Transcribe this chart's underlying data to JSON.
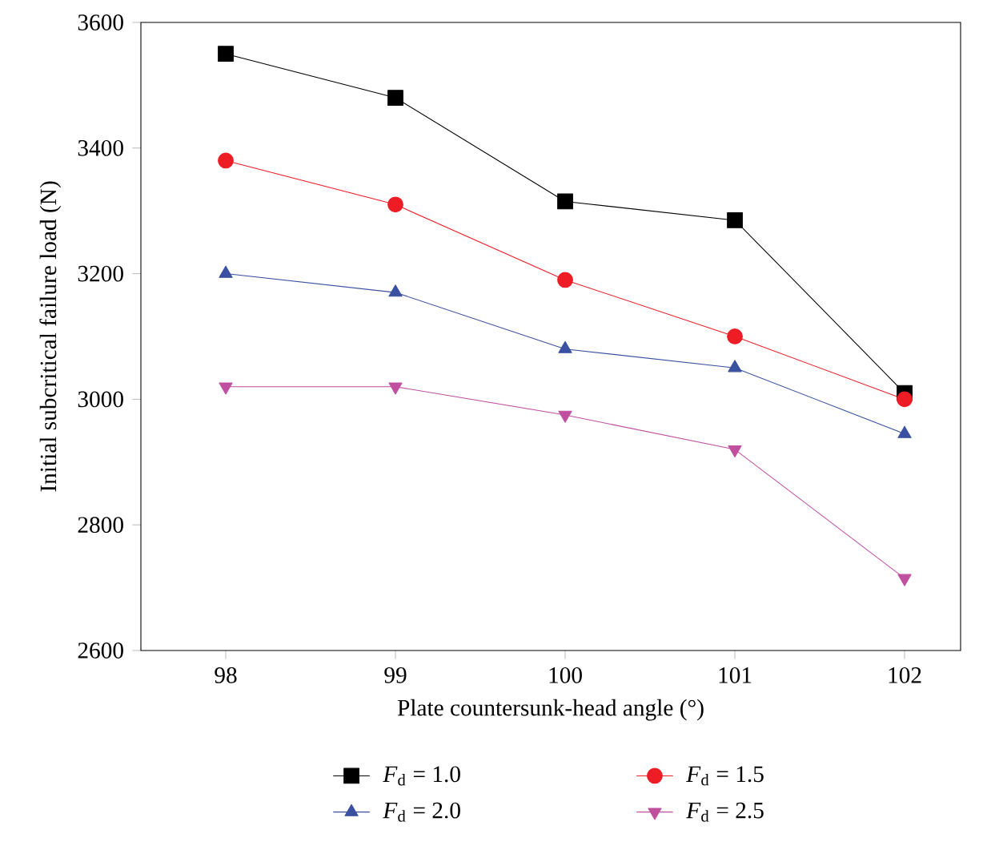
{
  "chart_data": {
    "type": "line",
    "xlabel": "Plate countersunk-head angle (°)",
    "ylabel": "Initial subcritical failure load (N)",
    "categories": [
      "98",
      "99",
      "100",
      "101",
      "102"
    ],
    "ylim": [
      2600,
      3600
    ],
    "yticks": [
      2600,
      2800,
      3000,
      3200,
      3400,
      3600
    ],
    "grid": false,
    "legend": "bottom",
    "line_style": "solid",
    "series": [
      {
        "name": "*F*$_{d}$ = 1.0",
        "color": "#000000",
        "marker": "square",
        "values": [
          3550,
          3480,
          3315,
          3285,
          3010
        ]
      },
      {
        "name": "*F*$_{d}$ = 1.5",
        "color": "#ee1c25",
        "marker": "circle",
        "values": [
          3380,
          3310,
          3190,
          3100,
          3000
        ]
      },
      {
        "name": "*F*$_{d}$ = 2.0",
        "color": "#3a50a0",
        "marker": "triangle",
        "values": [
          3200,
          3170,
          3080,
          3050,
          2945
        ]
      },
      {
        "name": "*F*$_{d}$ = 2.5",
        "color": "#c0509f",
        "marker": "triangle-down",
        "values": [
          3020,
          3020,
          2975,
          2920,
          2715
        ]
      }
    ]
  }
}
